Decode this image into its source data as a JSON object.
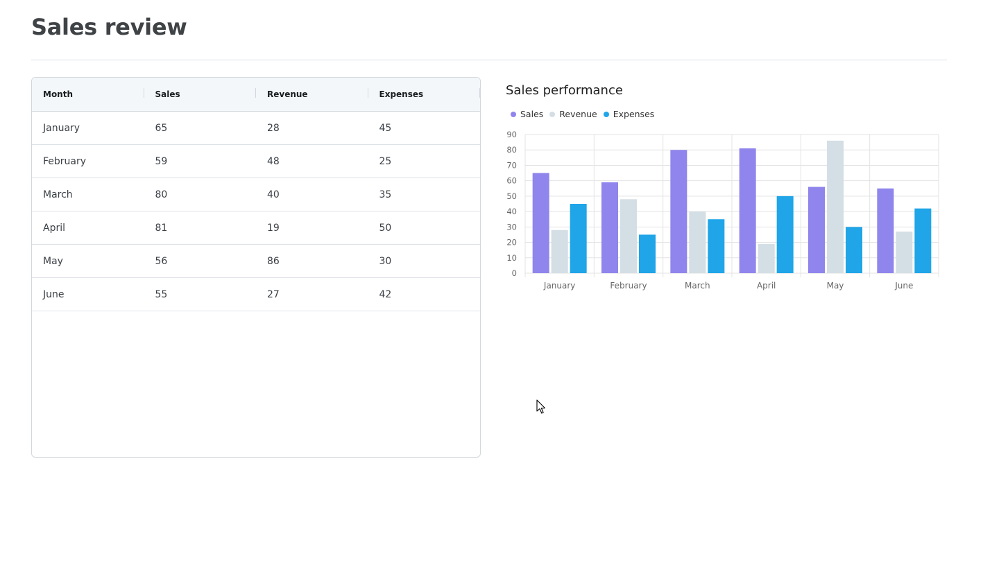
{
  "page": {
    "title": "Sales review"
  },
  "table": {
    "columns": [
      "Month",
      "Sales",
      "Revenue",
      "Expenses"
    ],
    "rows": [
      [
        "January",
        "65",
        "28",
        "45"
      ],
      [
        "February",
        "59",
        "48",
        "25"
      ],
      [
        "March",
        "80",
        "40",
        "35"
      ],
      [
        "April",
        "81",
        "19",
        "50"
      ],
      [
        "May",
        "56",
        "86",
        "30"
      ],
      [
        "June",
        "55",
        "27",
        "42"
      ]
    ]
  },
  "chart_data": {
    "type": "bar",
    "title": "Sales performance",
    "categories": [
      "January",
      "February",
      "March",
      "April",
      "May",
      "June"
    ],
    "series": [
      {
        "name": "Sales",
        "values": [
          65,
          59,
          80,
          81,
          56,
          55
        ],
        "color": "#8f85ec"
      },
      {
        "name": "Revenue",
        "values": [
          28,
          48,
          40,
          19,
          86,
          27
        ],
        "color": "#d4dee5"
      },
      {
        "name": "Expenses",
        "values": [
          45,
          25,
          35,
          50,
          30,
          42
        ],
        "color": "#1fa5e8"
      }
    ],
    "ylim": [
      0,
      90
    ],
    "yticks": [
      0,
      10,
      20,
      30,
      40,
      50,
      60,
      70,
      80,
      90
    ],
    "xlabel": "",
    "ylabel": "",
    "grid": true,
    "legend": "top-left"
  }
}
